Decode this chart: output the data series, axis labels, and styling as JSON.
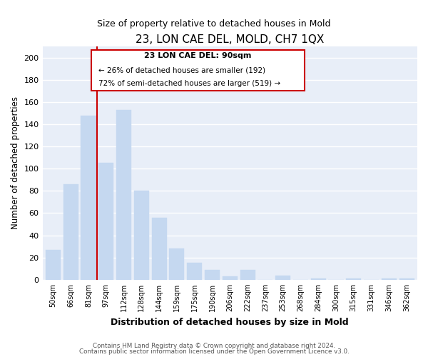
{
  "title": "23, LON CAE DEL, MOLD, CH7 1QX",
  "subtitle": "Size of property relative to detached houses in Mold",
  "xlabel": "Distribution of detached houses by size in Mold",
  "ylabel": "Number of detached properties",
  "bar_labels": [
    "50sqm",
    "66sqm",
    "81sqm",
    "97sqm",
    "112sqm",
    "128sqm",
    "144sqm",
    "159sqm",
    "175sqm",
    "190sqm",
    "206sqm",
    "222sqm",
    "237sqm",
    "253sqm",
    "268sqm",
    "284sqm",
    "300sqm",
    "315sqm",
    "331sqm",
    "346sqm",
    "362sqm"
  ],
  "bar_values": [
    27,
    86,
    148,
    105,
    153,
    80,
    56,
    28,
    15,
    9,
    3,
    9,
    0,
    4,
    0,
    1,
    0,
    1,
    0,
    1,
    1
  ],
  "bar_color": "#c5d8f0",
  "bar_edge_color": "#c5d8f0",
  "vline_color": "#cc0000",
  "vline_pos": 2.5,
  "ylim": [
    0,
    210
  ],
  "yticks": [
    0,
    20,
    40,
    60,
    80,
    100,
    120,
    140,
    160,
    180,
    200
  ],
  "annotation_title": "23 LON CAE DEL: 90sqm",
  "annotation_line1": "← 26% of detached houses are smaller (192)",
  "annotation_line2": "72% of semi-detached houses are larger (519) →",
  "annotation_box_color": "#ffffff",
  "annotation_box_edge": "#cc0000",
  "footer_line1": "Contains HM Land Registry data © Crown copyright and database right 2024.",
  "footer_line2": "Contains public sector information licensed under the Open Government Licence v3.0.",
  "bg_color": "#ffffff",
  "plot_bg_color": "#e8eef8"
}
